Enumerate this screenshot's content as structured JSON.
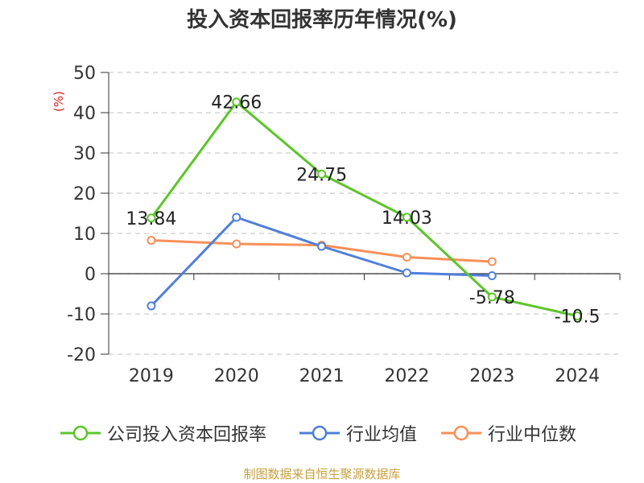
{
  "chart_data": {
    "type": "line",
    "title": "投入资本回报率历年情况(%)",
    "ylabel": "(%)",
    "xlabel": "",
    "categories": [
      "2019",
      "2020",
      "2021",
      "2022",
      "2023",
      "2024"
    ],
    "ylim": [
      -20,
      50
    ],
    "yticks": [
      -20,
      -10,
      0,
      10,
      20,
      30,
      40,
      50
    ],
    "grid": true,
    "legend_position": "bottom",
    "series": [
      {
        "name": "公司投入资本回报率",
        "color": "#5dc52a",
        "values": [
          13.84,
          42.66,
          24.75,
          14.03,
          -5.78,
          -10.5
        ],
        "labels": [
          "13.84",
          "42.66",
          "24.75",
          "14.03",
          "-5.78",
          "-10.5"
        ]
      },
      {
        "name": "行业均值",
        "color": "#4f7fdb",
        "values": [
          -8.0,
          14.0,
          6.8,
          0.2,
          -0.5,
          null
        ]
      },
      {
        "name": "行业中位数",
        "color": "#f89058",
        "values": [
          8.3,
          7.4,
          7.1,
          4.1,
          3.0,
          null
        ]
      }
    ]
  },
  "source": "制图数据来自恒生聚源数据库"
}
